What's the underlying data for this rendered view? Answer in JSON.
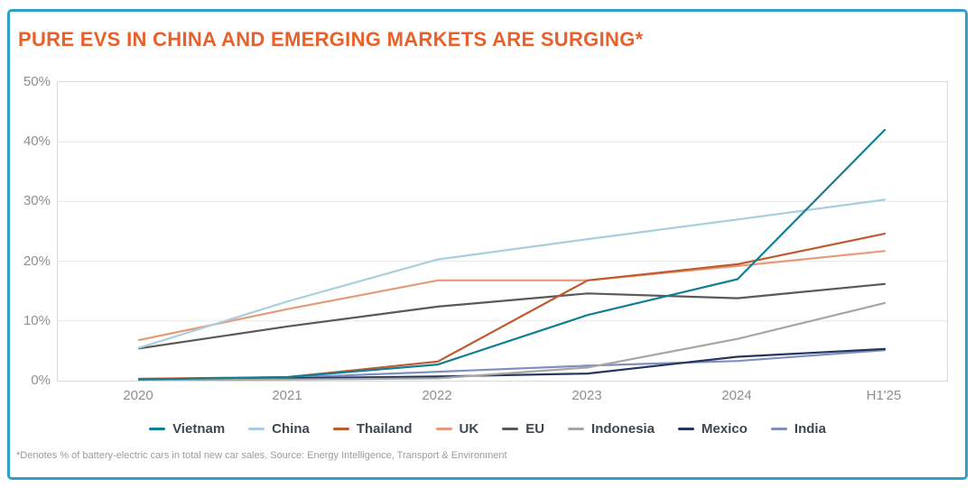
{
  "title": "PURE EVS IN CHINA AND EMERGING MARKETS ARE SURGING*",
  "footnote": "*Denotes % of battery-electric cars in total new car sales. Source: Energy Intelligence, Transport & Environment",
  "colors": {
    "card_border": "#2FA0CB",
    "title_text": "#E8612C",
    "axis_text": "#8F8F8F",
    "legend_text": "#3E4751",
    "gridline": "#E7E7E7",
    "plot_border": "#D8D8D8"
  },
  "chart_data": {
    "type": "line",
    "title": "PURE EVS IN CHINA AND EMERGING MARKETS ARE SURGING*",
    "xlabel": "",
    "ylabel": "",
    "ylim": [
      0,
      50
    ],
    "grid": true,
    "legend_position": "bottom",
    "categories": [
      "2020",
      "2021",
      "2022",
      "2023",
      "2024",
      "H1'25"
    ],
    "ytick_labels": [
      "50%",
      "40%",
      "30%",
      "20%",
      "10%",
      "0%"
    ],
    "series": [
      {
        "name": "Vietnam",
        "color": "#117F93",
        "values": [
          0.2,
          0.6,
          2.7,
          11.0,
          17.0,
          42.0
        ]
      },
      {
        "name": "China",
        "color": "#A9CEDE",
        "values": [
          5.5,
          13.3,
          20.3,
          23.7,
          27.0,
          30.3
        ]
      },
      {
        "name": "Thailand",
        "color": "#C05A2E",
        "values": [
          0.3,
          0.6,
          3.2,
          16.8,
          19.5,
          24.6
        ]
      },
      {
        "name": "UK",
        "color": "#E59B7A",
        "values": [
          6.8,
          12.0,
          16.8,
          16.8,
          19.2,
          21.7
        ]
      },
      {
        "name": "EU",
        "color": "#595959",
        "values": [
          5.4,
          9.1,
          12.4,
          14.6,
          13.8,
          16.2
        ]
      },
      {
        "name": "Indonesia",
        "color": "#A6A6A6",
        "values": [
          0.1,
          0.2,
          0.4,
          2.2,
          7.0,
          13.0
        ]
      },
      {
        "name": "Mexico",
        "color": "#24365C",
        "values": [
          0.25,
          0.4,
          0.7,
          1.2,
          4.0,
          5.3
        ]
      },
      {
        "name": "India",
        "color": "#7F8FC0",
        "values": [
          0.3,
          0.5,
          1.5,
          2.5,
          3.3,
          5.1
        ]
      }
    ]
  }
}
